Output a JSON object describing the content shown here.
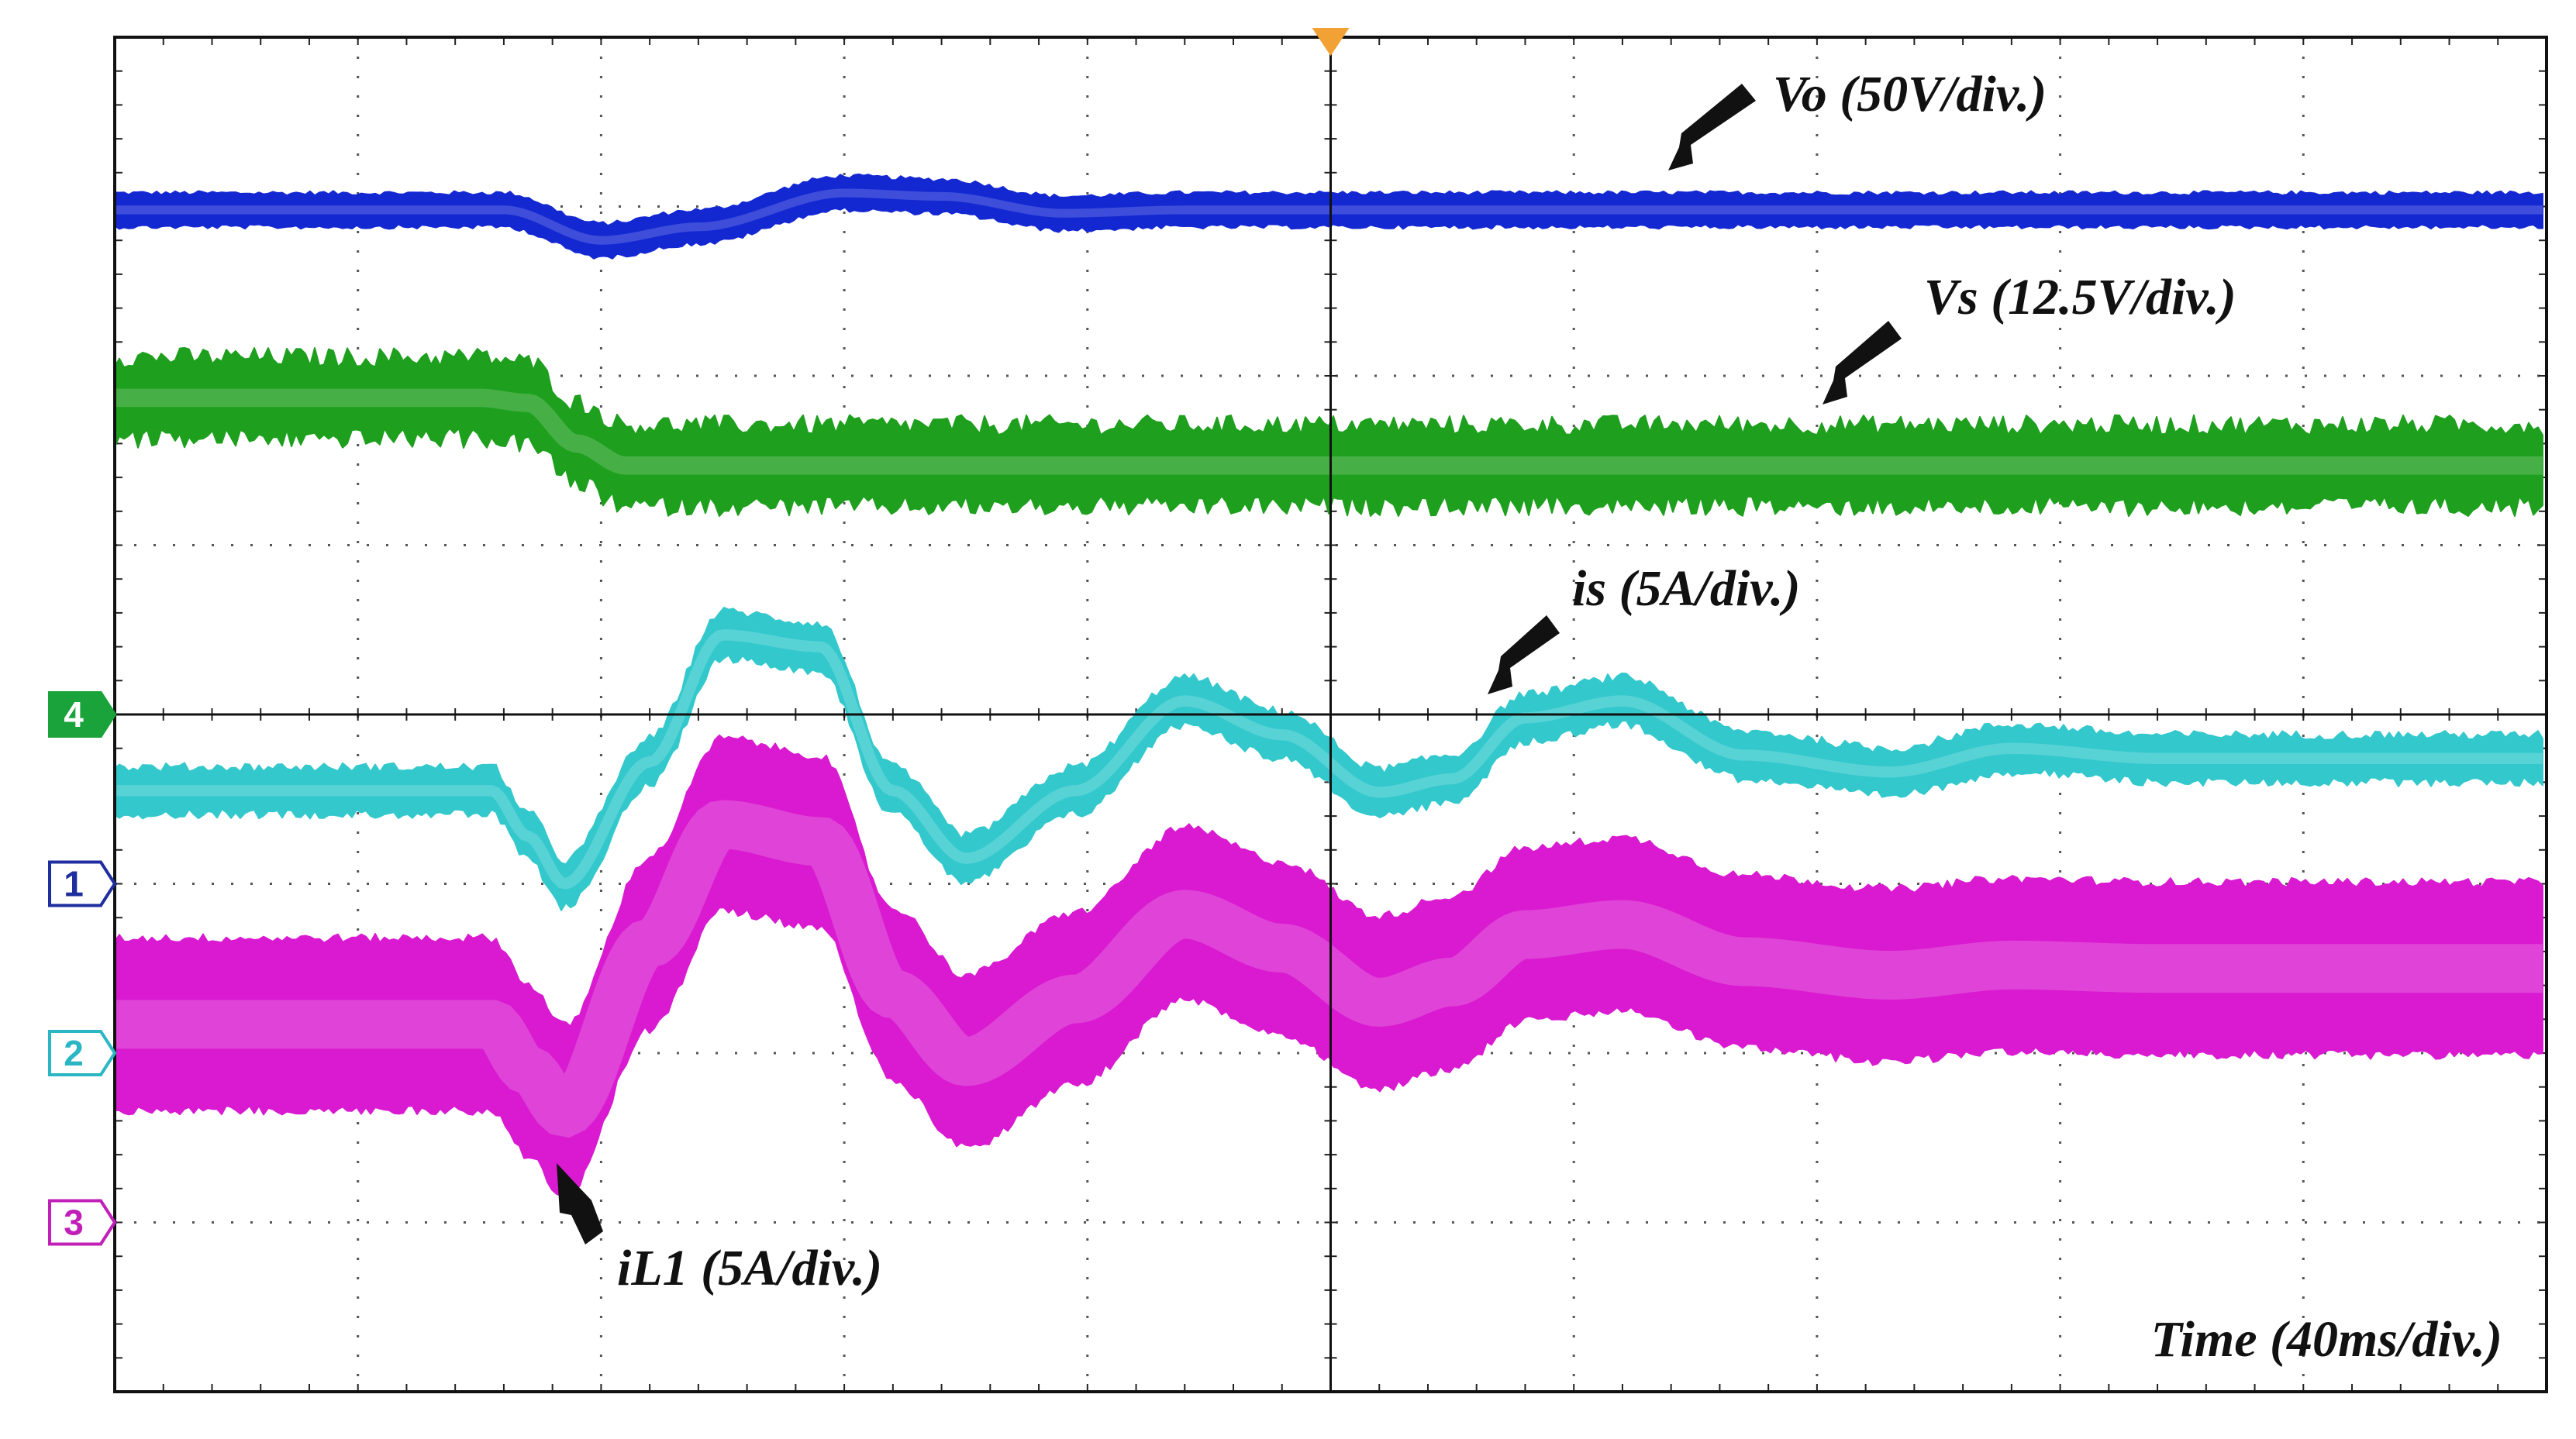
{
  "chart_data": {
    "type": "line",
    "title": "",
    "time_label": "Time (40ms/div.)",
    "grid": true,
    "x_range_ms": [
      -240,
      160
    ],
    "divisions": {
      "x": 10,
      "y": 8
    },
    "trigger_marker": "trigger-arrow",
    "series": [
      {
        "key": "vo",
        "name": "Vo",
        "label": "Vo (50V/div.)",
        "scale_per_div": 50,
        "unit": "V",
        "color": "#1428d2",
        "band_div": 0.17,
        "noise": "low",
        "points_x_div": [
          0,
          1.6,
          2.0,
          2.4,
          3.0,
          3.4,
          3.9,
          4.4,
          5.0,
          10
        ],
        "points_y_div": [
          6.98,
          6.98,
          6.8,
          6.88,
          7.08,
          7.06,
          6.96,
          6.98,
          6.98,
          6.98
        ]
      },
      {
        "key": "vs",
        "name": "Vs",
        "label": "Vs (12.5V/div.)",
        "scale_per_div": 12.5,
        "unit": "V",
        "color": "#1e9f1e",
        "band_div": 0.36,
        "noise": "high",
        "points_x_div": [
          0,
          1.5,
          1.7,
          1.9,
          2.1,
          10
        ],
        "points_y_div": [
          5.87,
          5.87,
          5.84,
          5.6,
          5.47,
          5.47
        ]
      },
      {
        "key": "is",
        "name": "is",
        "label": "is (5A/div.)",
        "scale_per_div": 5,
        "unit": "A",
        "color": "#33c8cc",
        "band_div": 0.22,
        "noise": "mid",
        "points_x_div": [
          0,
          1.55,
          1.7,
          1.85,
          2.2,
          2.5,
          2.9,
          3.2,
          3.5,
          3.95,
          4.4,
          4.8,
          5.2,
          5.5,
          5.8,
          6.2,
          6.7,
          7.3,
          7.8,
          8.4,
          9.0,
          10
        ],
        "points_y_div": [
          3.55,
          3.55,
          3.28,
          3.0,
          3.72,
          4.47,
          4.4,
          3.55,
          3.15,
          3.55,
          4.08,
          3.88,
          3.54,
          3.62,
          3.98,
          4.08,
          3.76,
          3.66,
          3.8,
          3.74,
          3.74,
          3.74
        ]
      },
      {
        "key": "il1",
        "name": "iL1",
        "label": "iL1 (5A/div.)",
        "scale_per_div": 5,
        "unit": "A",
        "color": "#d91ad0",
        "band_div": 0.96,
        "noise": "mid",
        "points_x_div": [
          0,
          1.55,
          1.7,
          1.85,
          2.2,
          2.5,
          2.9,
          3.2,
          3.5,
          3.95,
          4.4,
          4.8,
          5.2,
          5.5,
          5.8,
          6.2,
          6.7,
          7.3,
          7.8,
          8.4,
          9.0,
          10
        ],
        "points_y_div": [
          2.17,
          2.17,
          1.9,
          1.65,
          2.65,
          3.35,
          3.25,
          2.35,
          1.95,
          2.32,
          2.82,
          2.62,
          2.3,
          2.42,
          2.7,
          2.76,
          2.54,
          2.46,
          2.52,
          2.5,
          2.5,
          2.5
        ]
      }
    ],
    "channel_markers": [
      {
        "id": "4",
        "color": "#1aa23b",
        "filled": true,
        "y_div": 4.0
      },
      {
        "id": "1",
        "color": "#1f2e9e",
        "filled": false,
        "y_div": 3.0
      },
      {
        "id": "2",
        "color": "#2bb6c4",
        "filled": false,
        "y_div": 2.0
      },
      {
        "id": "3",
        "color": "#c01fb8",
        "filled": false,
        "y_div": 1.0
      }
    ]
  }
}
